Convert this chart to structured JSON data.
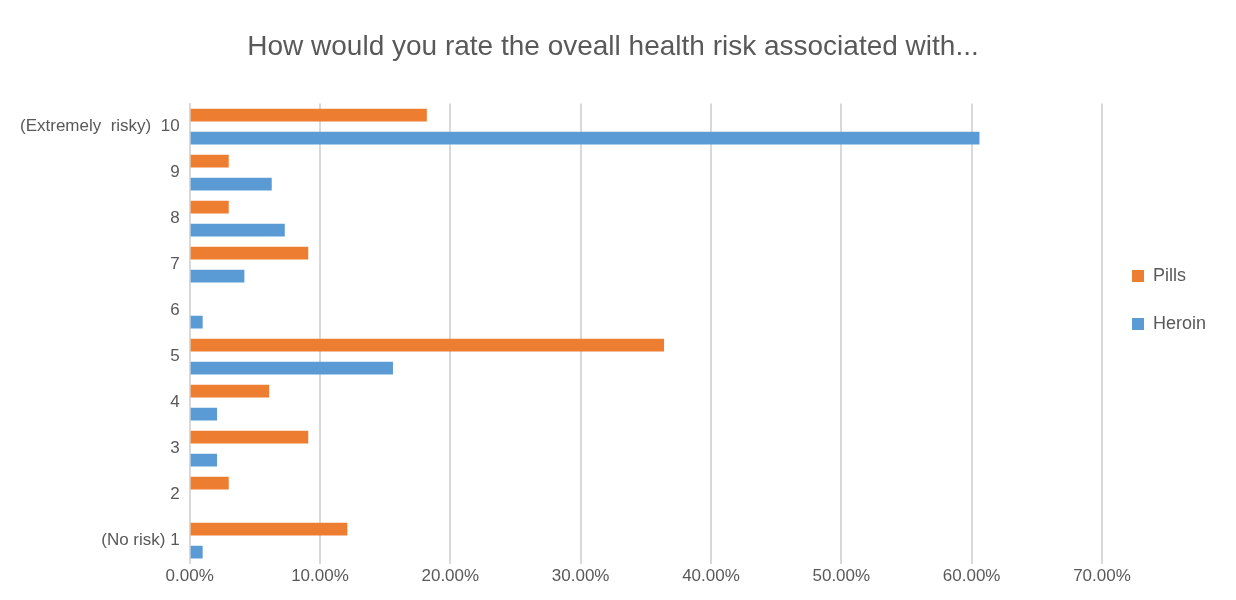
{
  "chart_data": {
    "type": "bar",
    "orientation": "horizontal",
    "title": "How would you rate the oveall health risk associated with...",
    "categories": [
      "(Extremely  risky)  10",
      "9",
      "8",
      "7",
      "6",
      "5",
      "4",
      "3",
      "2",
      "(No risk) 1"
    ],
    "series": [
      {
        "name": "Pills",
        "color": "#ed7d31",
        "values": [
          18.2,
          3.0,
          3.0,
          9.1,
          0,
          36.4,
          6.1,
          9.1,
          3.0,
          12.1
        ]
      },
      {
        "name": "Heroin",
        "color": "#5b9bd5",
        "values": [
          60.6,
          6.3,
          7.3,
          4.2,
          1.0,
          15.6,
          2.1,
          2.1,
          0,
          1.0
        ]
      }
    ],
    "xlim": [
      0,
      70
    ],
    "xticks": [
      {
        "value": 0,
        "label": "0.00%"
      },
      {
        "value": 10,
        "label": "10.00%"
      },
      {
        "value": 20,
        "label": "20.00%"
      },
      {
        "value": 30,
        "label": "30.00%"
      },
      {
        "value": 40,
        "label": "40.00%"
      },
      {
        "value": 50,
        "label": "50.00%"
      },
      {
        "value": 60,
        "label": "60.00%"
      },
      {
        "value": 70,
        "label": "70.00%"
      }
    ],
    "grid": "x",
    "legend": "right"
  }
}
